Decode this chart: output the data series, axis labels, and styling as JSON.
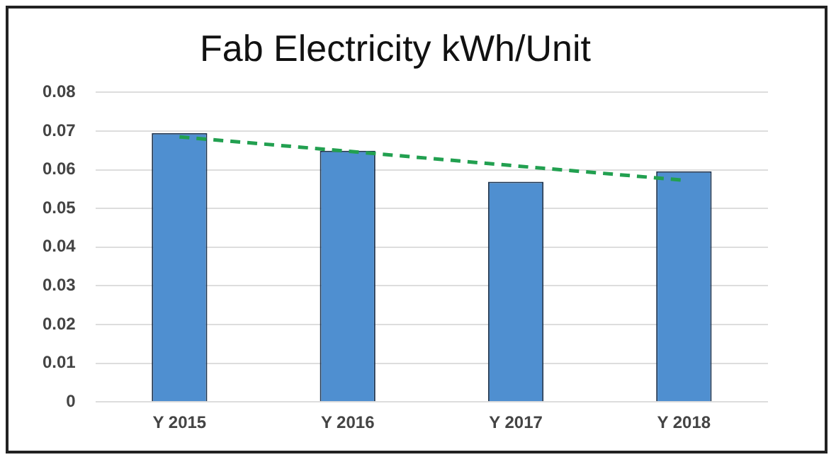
{
  "chart_data": {
    "type": "bar",
    "title": "Fab Electricity kWh/Unit",
    "categories": [
      "Y 2015",
      "Y 2016",
      "Y 2017",
      "Y 2018"
    ],
    "series": [
      {
        "color": "#4f8fd0",
        "values": [
          0.0695,
          0.0649,
          0.0569,
          0.0596
        ]
      },
      {
        "type": "line",
        "color": "#22a050",
        "line_style": "dashed",
        "marker": "none",
        "values": [
          0.0685,
          0.0648,
          0.061,
          0.0573
        ]
      }
    ],
    "ylim": [
      0,
      0.08
    ],
    "yticks": [
      0,
      0.01,
      0.02,
      0.03,
      0.04,
      0.05,
      0.06,
      0.07,
      0.08
    ],
    "grid": "y",
    "legend": false
  }
}
